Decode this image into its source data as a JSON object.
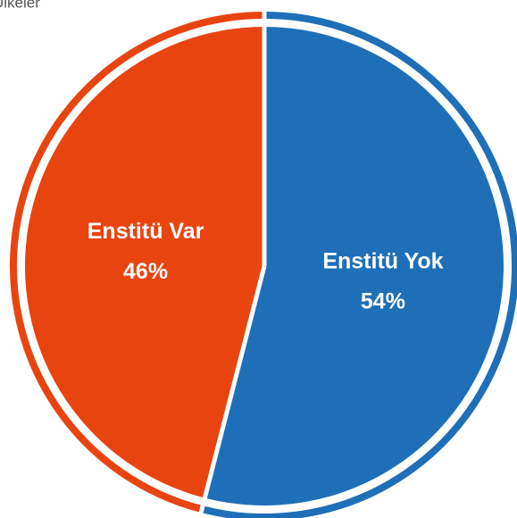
{
  "chart_data": {
    "type": "pie",
    "title": "Ülkeler",
    "categories": [
      "Enstitü Yok",
      "Enstitü Var"
    ],
    "values": [
      54,
      46
    ],
    "value_labels": [
      "54%",
      "46%"
    ],
    "colors": [
      "#1f6fb8",
      "#e84410"
    ]
  }
}
